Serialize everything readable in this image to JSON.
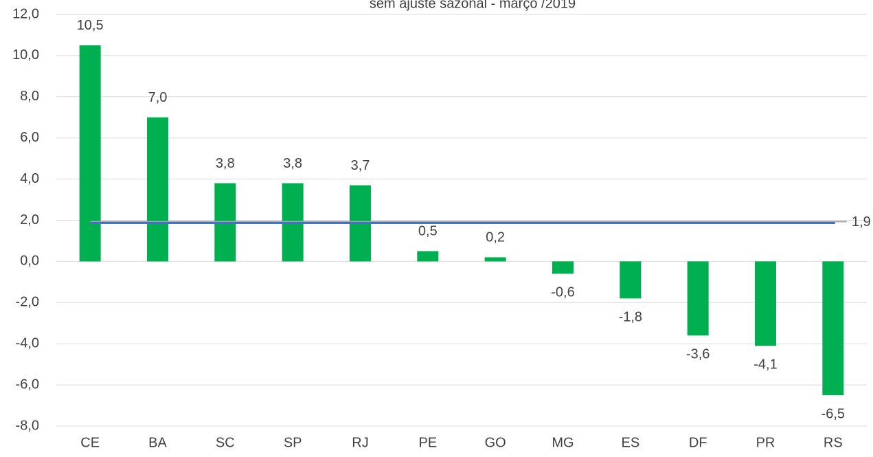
{
  "chart_data": {
    "type": "bar",
    "title": "sem ajuste sazonal - março /2019",
    "categories": [
      "CE",
      "BA",
      "SC",
      "SP",
      "RJ",
      "PE",
      "GO",
      "MG",
      "ES",
      "DF",
      "PR",
      "RS"
    ],
    "values": [
      10.5,
      7.0,
      3.8,
      3.8,
      3.7,
      0.5,
      0.2,
      -0.6,
      -1.8,
      -3.6,
      -4.1,
      -6.5
    ],
    "value_labels": [
      "10,5",
      "7,0",
      "3,8",
      "3,8",
      "3,7",
      "0,5",
      "0,2",
      "-0,6",
      "-1,8",
      "-3,6",
      "-4,1",
      "-6,5"
    ],
    "color": "#00b050",
    "ylim": [
      -8,
      12
    ],
    "yticks": [
      {
        "value": -8,
        "label": "-8,0"
      },
      {
        "value": -6,
        "label": "-6,0"
      },
      {
        "value": -4,
        "label": "-4,0"
      },
      {
        "value": -2,
        "label": "-2,0"
      },
      {
        "value": 0,
        "label": "0,0"
      },
      {
        "value": 2,
        "label": "2,0"
      },
      {
        "value": 4,
        "label": "4,0"
      },
      {
        "value": 6,
        "label": "6,0"
      },
      {
        "value": 8,
        "label": "8,0"
      },
      {
        "value": 10,
        "label": "10,0"
      },
      {
        "value": 12,
        "label": "12,0"
      }
    ],
    "grid": true,
    "reference_line": {
      "value": 1.9,
      "label": "1,9",
      "color": "#4472c4"
    }
  }
}
